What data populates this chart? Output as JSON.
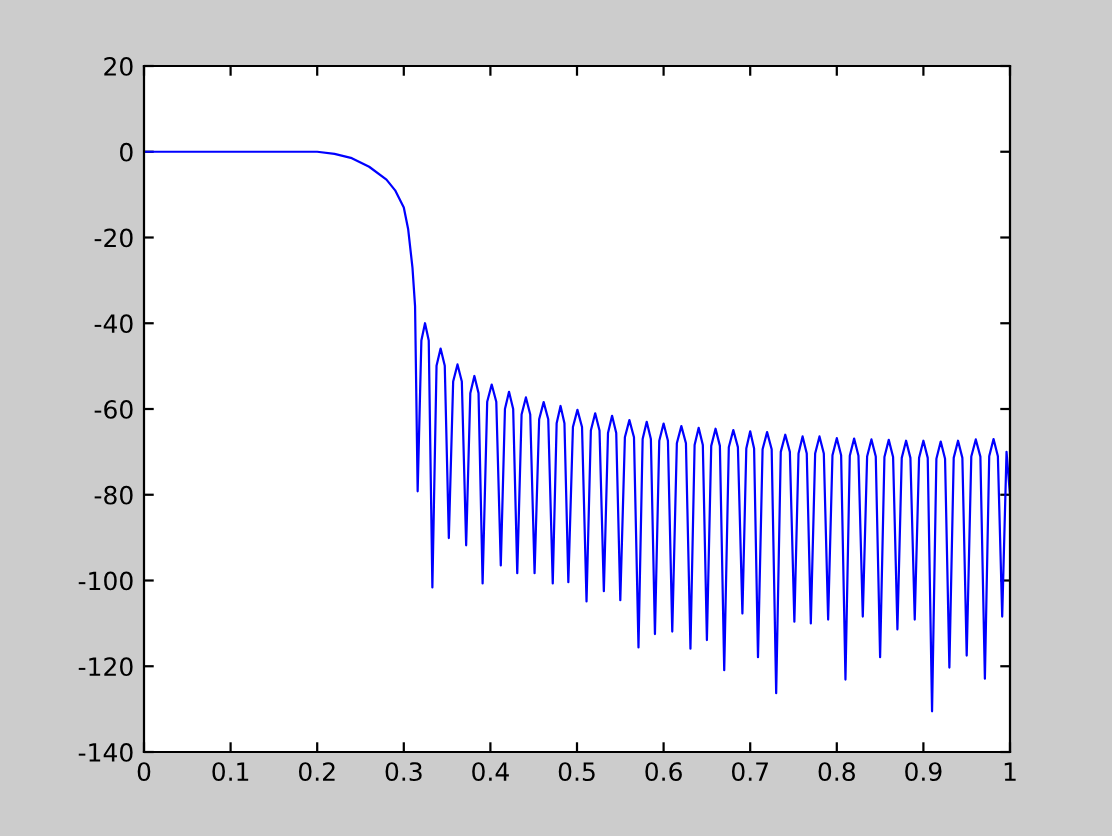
{
  "chart_data": {
    "type": "line",
    "xlim": [
      0,
      1
    ],
    "ylim": [
      -140,
      20
    ],
    "xticks": [
      0,
      0.1,
      0.2,
      0.3,
      0.4,
      0.5,
      0.6,
      0.7,
      0.8,
      0.9,
      1
    ],
    "yticks": [
      -140,
      -120,
      -100,
      -80,
      -60,
      -40,
      -20,
      0,
      20
    ],
    "grid": false,
    "legend": false,
    "marker": "none",
    "line_style": "solid",
    "series": [
      {
        "color": "#0000ff",
        "x": [
          0,
          0.2,
          0.22,
          0.24,
          0.26,
          0.28,
          0.29,
          0.3,
          0.305,
          0.31,
          0.313,
          0.316,
          0.3203,
          0.3245,
          0.3288,
          0.333,
          0.3378,
          0.3425,
          0.3473,
          0.352,
          0.357,
          0.362,
          0.367,
          0.372,
          0.3768,
          0.3815,
          0.3863,
          0.391,
          0.3963,
          0.4015,
          0.4068,
          0.412,
          0.4168,
          0.4215,
          0.4263,
          0.431,
          0.436,
          0.441,
          0.446,
          0.451,
          0.4563,
          0.4615,
          0.4668,
          0.472,
          0.4765,
          0.481,
          0.4855,
          0.49,
          0.4953,
          0.5005,
          0.5058,
          0.511,
          0.516,
          0.521,
          0.526,
          0.531,
          0.5358,
          0.5405,
          0.5453,
          0.55,
          0.5553,
          0.5605,
          0.5658,
          0.571,
          0.5758,
          0.5805,
          0.5853,
          0.59,
          0.595,
          0.6,
          0.605,
          0.61,
          0.6153,
          0.6205,
          0.6258,
          0.631,
          0.6358,
          0.6405,
          0.6453,
          0.65,
          0.655,
          0.66,
          0.665,
          0.67,
          0.6753,
          0.6805,
          0.6858,
          0.691,
          0.6955,
          0.7,
          0.7045,
          0.709,
          0.7143,
          0.7195,
          0.7248,
          0.73,
          0.7353,
          0.7405,
          0.7458,
          0.751,
          0.7558,
          0.7605,
          0.7653,
          0.77,
          0.775,
          0.78,
          0.785,
          0.79,
          0.795,
          0.8,
          0.805,
          0.81,
          0.815,
          0.82,
          0.825,
          0.83,
          0.835,
          0.84,
          0.845,
          0.85,
          0.855,
          0.86,
          0.865,
          0.87,
          0.875,
          0.88,
          0.885,
          0.89,
          0.895,
          0.9,
          0.905,
          0.91,
          0.915,
          0.92,
          0.925,
          0.93,
          0.935,
          0.94,
          0.945,
          0.95,
          0.9553,
          0.9605,
          0.9658,
          0.971,
          0.976,
          0.981,
          0.986,
          0.991,
          0.996,
          1
        ],
        "values": [
          0,
          0,
          -0.5,
          -1.5,
          -3.5,
          -6.5,
          -9,
          -13,
          -18,
          -27,
          -36,
          -79.2,
          -44,
          -40,
          -44,
          -101.6,
          -49.9,
          -45.9,
          -49.9,
          -90.1,
          -53.6,
          -49.6,
          -53.6,
          -91.8,
          -56.3,
          -52.3,
          -56.3,
          -100.7,
          -58.3,
          -54.3,
          -58.3,
          -96.5,
          -60,
          -56,
          -60,
          -98.3,
          -61.3,
          -57.3,
          -61.3,
          -98.3,
          -62.4,
          -58.4,
          -62.4,
          -100.7,
          -63.3,
          -59.3,
          -63.3,
          -100.4,
          -64.2,
          -60.2,
          -64.2,
          -104.9,
          -65,
          -61,
          -65,
          -102.5,
          -65.6,
          -61.6,
          -65.6,
          -104.6,
          -66.6,
          -62.6,
          -66.6,
          -115.6,
          -67,
          -63,
          -67,
          -112.5,
          -67.4,
          -63.4,
          -67.4,
          -111.9,
          -68,
          -64,
          -68,
          -115.9,
          -68.4,
          -64.4,
          -68.4,
          -113.9,
          -68.6,
          -64.6,
          -68.6,
          -120.9,
          -68.9,
          -64.9,
          -68.9,
          -107.7,
          -69.2,
          -65.2,
          -69.2,
          -117.9,
          -69.4,
          -65.4,
          -69.4,
          -126.3,
          -70,
          -66,
          -70,
          -109.6,
          -70.4,
          -66.4,
          -70.4,
          -110,
          -70.4,
          -66.4,
          -70.4,
          -109.1,
          -70.8,
          -66.8,
          -70.8,
          -123.1,
          -70.9,
          -66.9,
          -70.9,
          -108.4,
          -71.1,
          -67.1,
          -71.1,
          -117.9,
          -71.2,
          -67.2,
          -71.2,
          -111.4,
          -71.4,
          -67.4,
          -71.4,
          -109.1,
          -71.4,
          -67.4,
          -71.4,
          -130.5,
          -71.6,
          -67.6,
          -71.6,
          -120.3,
          -71.4,
          -67.4,
          -71.4,
          -117.5,
          -71.1,
          -67.1,
          -71.1,
          -122.9,
          -71,
          -67,
          -71,
          -108.4,
          -70,
          -80
        ]
      }
    ]
  }
}
